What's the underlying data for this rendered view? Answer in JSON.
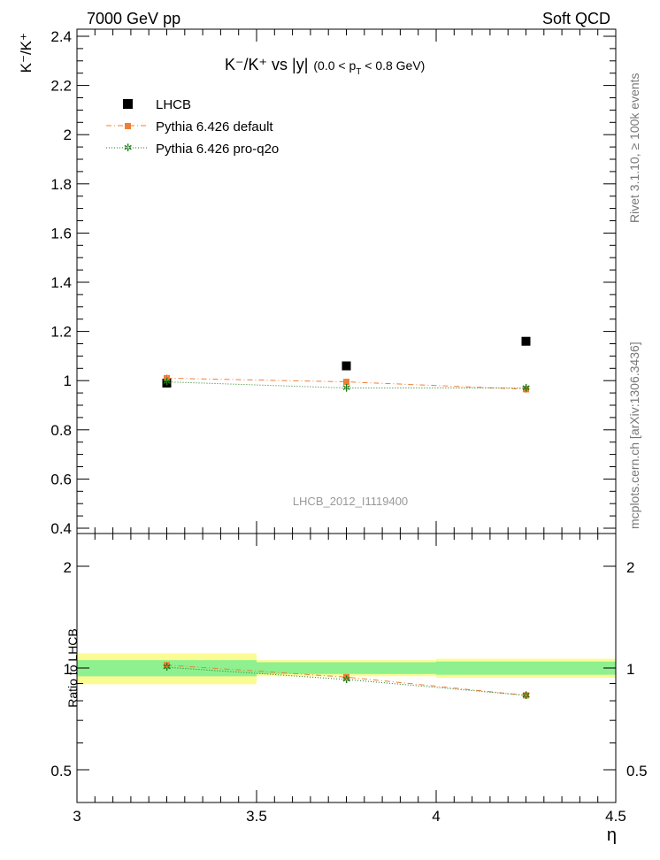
{
  "header": {
    "energy_label": "7000 GeV pp",
    "process_label": "Soft QCD"
  },
  "side_labels": {
    "rivet": "Rivet 3.1.10, ≥ 100k events",
    "mcplots": "mcplots.cern.ch [arXiv:1306.3436]"
  },
  "analysis_id": "LHCB_2012_I1119400",
  "chart_data": [
    {
      "type": "scatter",
      "title": {
        "main": "K⁻/K⁺ vs |y|",
        "cut": "(0.0 < p",
        "cut_sub": "T",
        "cut_end": " < 0.8 GeV)"
      },
      "ylabel": "K⁻/K⁺",
      "xlim": [
        3.0,
        4.5
      ],
      "ylim": [
        0.4,
        2.45
      ],
      "yticks": [
        "0.4",
        "0.6",
        "0.8",
        "1",
        "1.2",
        "1.4",
        "1.6",
        "1.8",
        "2",
        "2.2",
        "2.4"
      ],
      "legend_position": "top-left",
      "series": [
        {
          "name": "LHCB",
          "color": "#000000",
          "marker": "square",
          "x": [
            3.25,
            3.75,
            4.25
          ],
          "y": [
            0.99,
            1.06,
            1.16
          ],
          "yerr": [
            0.012,
            0.012,
            0.012
          ]
        },
        {
          "name": "Pythia 6.426 default",
          "color": "#f07f33",
          "marker": "square-small",
          "line": "dashdot",
          "x": [
            3.25,
            3.75,
            4.25
          ],
          "y": [
            1.01,
            0.995,
            0.965
          ],
          "yerr": [
            0.015,
            0.012,
            0.015
          ]
        },
        {
          "name": "Pythia 6.426 pro-q2o",
          "color": "#1a7a1a",
          "marker": "star",
          "line": "dotted",
          "x": [
            3.25,
            3.75,
            4.25
          ],
          "y": [
            0.995,
            0.97,
            0.97
          ],
          "yerr": [
            0.012,
            0.015,
            0.012
          ]
        }
      ]
    },
    {
      "type": "line",
      "ylabel": "Ratio to LHCB",
      "xlabel": "η",
      "xlim": [
        3.0,
        4.5
      ],
      "ylim": [
        0.4,
        2.5
      ],
      "y_scale": "log",
      "xticks": [
        "3",
        "3.5",
        "4",
        "4.5"
      ],
      "yticks": [
        "0.5",
        "1",
        "2"
      ],
      "bands": [
        {
          "x": [
            3.0,
            3.5
          ],
          "inner": [
            0.945,
            1.055
          ],
          "outer": [
            0.895,
            1.105
          ]
        },
        {
          "x": [
            3.5,
            4.0
          ],
          "inner": [
            0.96,
            1.04
          ],
          "outer": [
            0.945,
            1.055
          ]
        },
        {
          "x": [
            4.0,
            4.5
          ],
          "inner": [
            0.955,
            1.045
          ],
          "outer": [
            0.935,
            1.065
          ]
        }
      ],
      "band_colors": {
        "inner": "#8ef08e",
        "outer": "#fbfb94"
      },
      "series": [
        {
          "name": "Pythia 6.426 default",
          "color": "#f07f33",
          "x": [
            3.25,
            3.75,
            4.25
          ],
          "y": [
            1.02,
            0.94,
            0.83
          ]
        },
        {
          "name": "Pythia 6.426 pro-q2o",
          "color": "#1a7a1a",
          "x": [
            3.25,
            3.75,
            4.25
          ],
          "y": [
            1.005,
            0.925,
            0.83
          ]
        }
      ]
    }
  ]
}
